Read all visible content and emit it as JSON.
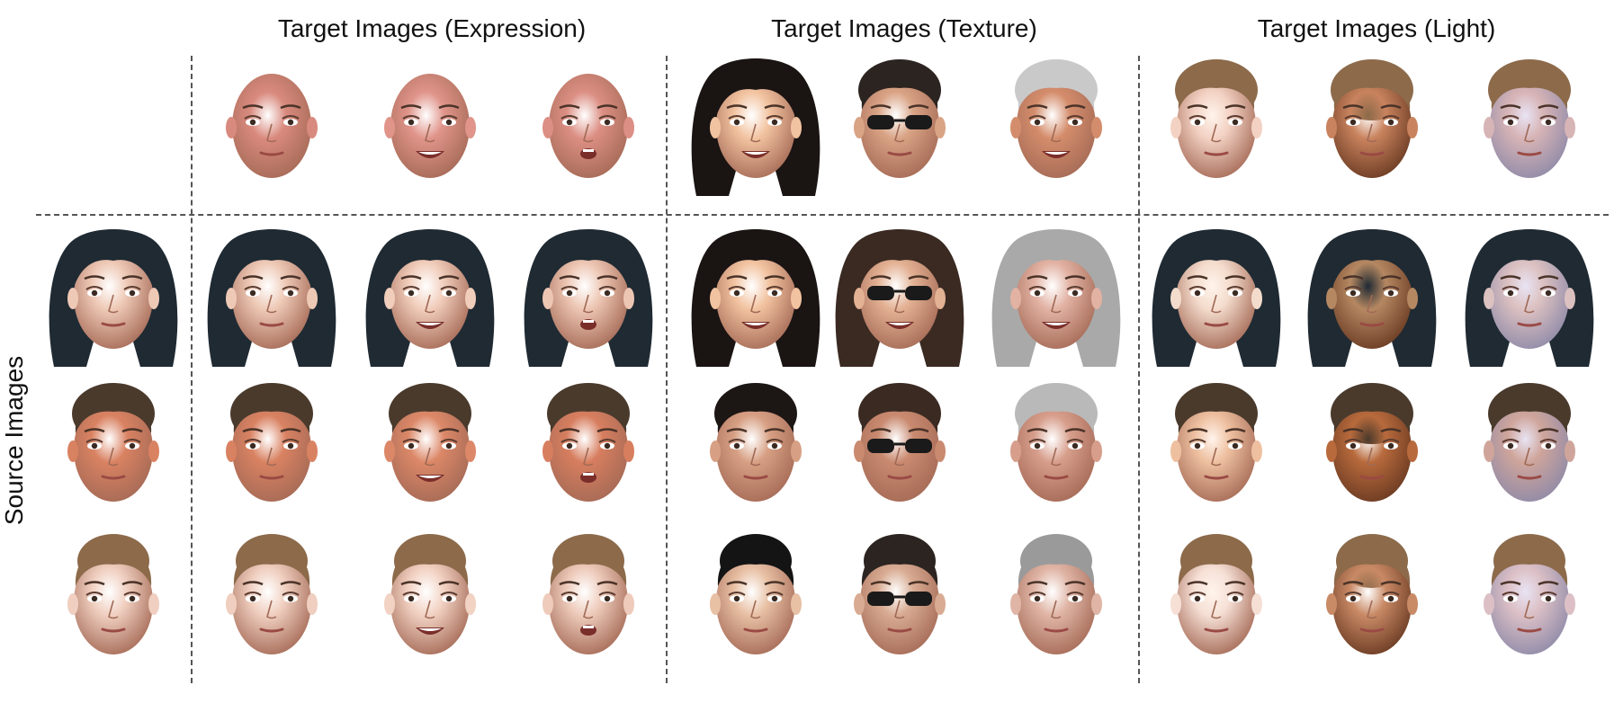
{
  "figure": {
    "column_titles": [
      "Target Images (Expression)",
      "Target Images (Texture)",
      "Target Images (Light)"
    ],
    "row_title": "Source Images"
  },
  "palette": {
    "line": "#555555",
    "text": "#111111"
  },
  "targets": [
    {
      "group": "expression",
      "skin": "#d98a7e",
      "hair": "none",
      "expr": "neutral",
      "light": "flat"
    },
    {
      "group": "expression",
      "skin": "#e0948a",
      "hair": "none",
      "expr": "smile",
      "light": "flat"
    },
    {
      "group": "expression",
      "skin": "#dc8f84",
      "hair": "none",
      "expr": "open",
      "light": "flat"
    },
    {
      "group": "texture",
      "skin": "#f2c3a0",
      "hair": "#1a1413",
      "expr": "smile",
      "light": "flat",
      "style": "long"
    },
    {
      "group": "texture",
      "skin": "#d9a385",
      "hair": "#2c2420",
      "expr": "neutral",
      "light": "flat",
      "glasses": true
    },
    {
      "group": "texture",
      "skin": "#d48d6c",
      "hair": "#c9c9c9",
      "expr": "smile",
      "light": "flat"
    },
    {
      "group": "light",
      "skin": "#f3d2c4",
      "hair": "#8c6a4a",
      "expr": "neutral",
      "light": "bright"
    },
    {
      "group": "light",
      "skin": "#c9835e",
      "hair": "#8c6a4a",
      "expr": "neutral",
      "light": "dark"
    },
    {
      "group": "light",
      "skin": "#d7b4b6",
      "hair": "#8c6a4a",
      "expr": "neutral",
      "light": "cool"
    }
  ],
  "sources": [
    {
      "skin": "#eec9b6",
      "hair": "#1f2a33",
      "style": "long",
      "outputs": [
        {
          "skin": "#eec9b6",
          "hair": "#1f2a33",
          "expr": "neutral",
          "light": "flat"
        },
        {
          "skin": "#f1cdbb",
          "hair": "#1f2a33",
          "expr": "smile",
          "light": "flat"
        },
        {
          "skin": "#edc6b3",
          "hair": "#1f2a33",
          "expr": "open",
          "light": "flat"
        },
        {
          "skin": "#f2c3a0",
          "hair": "#1a1413",
          "expr": "smile",
          "light": "flat"
        },
        {
          "skin": "#e3b193",
          "hair": "#3a2a22",
          "expr": "smile",
          "light": "flat",
          "glasses": true
        },
        {
          "skin": "#e2b2a3",
          "hair": "#a9a9a9",
          "expr": "smile",
          "light": "flat"
        },
        {
          "skin": "#f4dccd",
          "hair": "#1f2a33",
          "expr": "neutral",
          "light": "bright"
        },
        {
          "skin": "#b58862",
          "hair": "#1f2a33",
          "expr": "neutral",
          "light": "dark"
        },
        {
          "skin": "#dcc1c1",
          "hair": "#1f2a33",
          "expr": "neutral",
          "light": "cool"
        }
      ]
    },
    {
      "skin": "#d98262",
      "hair": "#4a3a2c",
      "style": "short",
      "outputs": [
        {
          "skin": "#d98262",
          "hair": "#4a3a2c",
          "expr": "neutral",
          "light": "flat"
        },
        {
          "skin": "#dc8868",
          "hair": "#4a3a2c",
          "expr": "smile",
          "light": "flat"
        },
        {
          "skin": "#d77e5f",
          "hair": "#4a3a2c",
          "expr": "open",
          "light": "flat"
        },
        {
          "skin": "#d7a084",
          "hair": "#1c1614",
          "expr": "neutral",
          "light": "flat"
        },
        {
          "skin": "#c98a70",
          "hair": "#3a2a22",
          "expr": "neutral",
          "light": "flat",
          "glasses": true
        },
        {
          "skin": "#d79e8c",
          "hair": "#b9b9b9",
          "expr": "neutral",
          "light": "flat"
        },
        {
          "skin": "#eec0a0",
          "hair": "#4a3a2c",
          "expr": "neutral",
          "light": "bright"
        },
        {
          "skin": "#b86a3c",
          "hair": "#4a3a2c",
          "expr": "neutral",
          "light": "dark"
        },
        {
          "skin": "#cfa59b",
          "hair": "#4a3a2c",
          "expr": "neutral",
          "light": "cool"
        }
      ]
    },
    {
      "skin": "#f0cfc0",
      "hair": "#8c6a4a",
      "style": "bun",
      "outputs": [
        {
          "skin": "#f0cfc0",
          "hair": "#8c6a4a",
          "expr": "neutral",
          "light": "flat"
        },
        {
          "skin": "#f2d2c3",
          "hair": "#8c6a4a",
          "expr": "smile",
          "light": "flat"
        },
        {
          "skin": "#eecbbb",
          "hair": "#8c6a4a",
          "expr": "open",
          "light": "flat"
        },
        {
          "skin": "#e8c0a4",
          "hair": "#141414",
          "expr": "neutral",
          "light": "flat"
        },
        {
          "skin": "#d8ab92",
          "hair": "#2c2420",
          "expr": "neutral",
          "light": "flat",
          "glasses": true
        },
        {
          "skin": "#e0b5a6",
          "hair": "#9a9a9a",
          "expr": "neutral",
          "light": "flat"
        },
        {
          "skin": "#f6e0d6",
          "hair": "#8c6a4a",
          "expr": "neutral",
          "light": "bright"
        },
        {
          "skin": "#c98a66",
          "hair": "#8c6a4a",
          "expr": "neutral",
          "light": "dark"
        },
        {
          "skin": "#dcc0c6",
          "hair": "#8c6a4a",
          "expr": "neutral",
          "light": "cool"
        }
      ]
    }
  ]
}
